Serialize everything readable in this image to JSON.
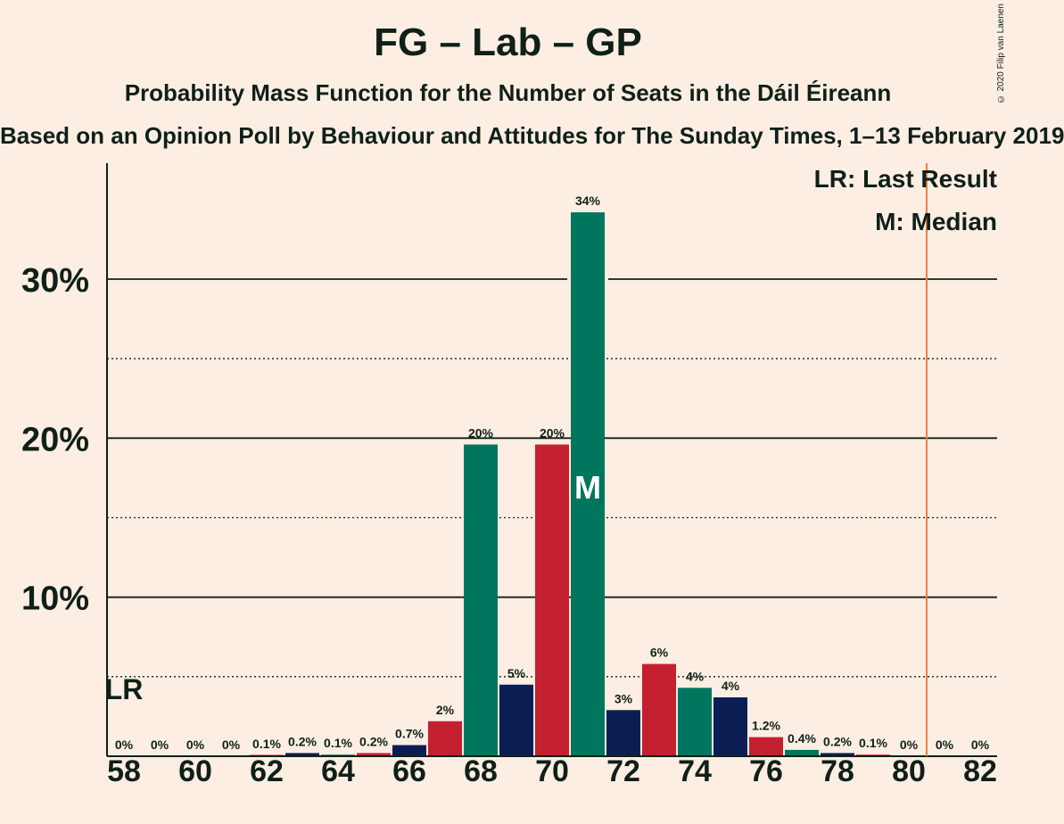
{
  "title": "FG – Lab – GP",
  "subtitle": "Probability Mass Function for the Number of Seats in the Dáil Éireann",
  "subtitle2": "Based on an Opinion Poll by Behaviour and Attitudes for The Sunday Times, 1–13 February 2019",
  "copyright": "© 2020 Filip van Laenen",
  "colors": {
    "background": "#FDEEE3",
    "fg_green": "#00765E",
    "lab_red": "#C42030",
    "gp_navy": "#0B1E54",
    "last_result_line": "#F08040",
    "text": "#0F2018"
  },
  "chart_data": {
    "type": "bar",
    "x": [
      58,
      59,
      60,
      61,
      62,
      63,
      64,
      65,
      66,
      67,
      68,
      69,
      70,
      71,
      72,
      73,
      74,
      75,
      76,
      77,
      78,
      79,
      80,
      81,
      82
    ],
    "values": [
      0,
      0,
      0,
      0,
      0.05,
      0.2,
      0.1,
      0.2,
      0.7,
      2.2,
      19.6,
      4.5,
      19.6,
      34.2,
      2.9,
      5.8,
      4.3,
      3.7,
      1.2,
      0.4,
      0.2,
      0.1,
      0,
      0,
      0
    ],
    "labels": [
      "0%",
      "0%",
      "0%",
      "0%",
      "0.1%",
      "0.2%",
      "0.1%",
      "0.2%",
      "0.7%",
      "2%",
      "20%",
      "5%",
      "20%",
      "34%",
      "3%",
      "6%",
      "4%",
      "4%",
      "1.2%",
      "0.4%",
      "0.2%",
      "0.1%",
      "0%",
      "0%",
      "0%"
    ],
    "colors": [
      "#00765E",
      "#C42030",
      "#0B1E54",
      "#00765E",
      "#C42030",
      "#0B1E54",
      "#00765E",
      "#C42030",
      "#0B1E54",
      "#C42030",
      "#00765E",
      "#0B1E54",
      "#C42030",
      "#00765E",
      "#0B1E54",
      "#C42030",
      "#00765E",
      "#0B1E54",
      "#C42030",
      "#00765E",
      "#0B1E54",
      "#C42030",
      "#00765E",
      "#0B1E54",
      "#C42030"
    ],
    "xticks": [
      "58",
      "60",
      "62",
      "64",
      "66",
      "68",
      "70",
      "72",
      "74",
      "76",
      "78",
      "80",
      "82"
    ],
    "yticks": [
      "10%",
      "20%",
      "30%"
    ],
    "ylim": [
      0,
      37
    ],
    "gridlines_solid": [
      10,
      20,
      30
    ],
    "gridlines_dotted": [
      5,
      15,
      25
    ],
    "median_seat": 71,
    "median_marker": "M",
    "last_result_seat": 58,
    "last_result_marker": "LR",
    "majority_line_x": 80.5,
    "legend": [
      "LR: Last Result",
      "M: Median"
    ],
    "legend_position": "top-right"
  }
}
